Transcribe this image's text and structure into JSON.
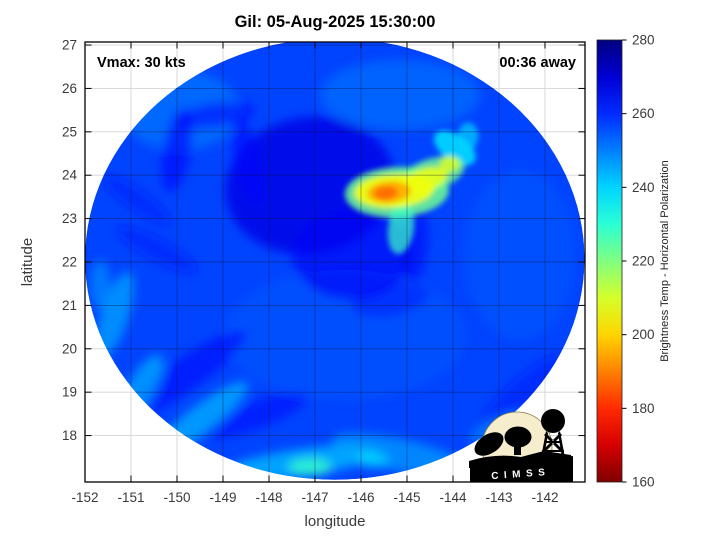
{
  "logo": {
    "text": "CIMSS"
  },
  "chart_data": {
    "type": "heatmap",
    "title": "Gil: 05-Aug-2025 15:30:00",
    "annotations": {
      "vmax": "Vmax: 30 kts",
      "time_away": "00:36 away"
    },
    "xlabel": "longitude",
    "ylabel": "latitude",
    "xlim": [
      -152.0,
      -141.13
    ],
    "ylim": [
      16.93,
      27.07
    ],
    "x_ticks": [
      -152,
      -151,
      -150,
      -149,
      -148,
      -147,
      -146,
      -145,
      -144,
      -143,
      -142
    ],
    "y_ticks": [
      18,
      19,
      20,
      21,
      22,
      23,
      24,
      25,
      26,
      27
    ],
    "grid": true,
    "colorbar": {
      "label": "Brightness Temp - Horizontal Polarization",
      "min": 160,
      "max": 280,
      "ticks": [
        280,
        260,
        240,
        220,
        200,
        180,
        160
      ],
      "colormap": "jet-reversed-high-is-blue"
    },
    "swath": {
      "description": "circular microwave scan footprint",
      "center_lon": -146.57,
      "center_lat": 22.07,
      "rx_deg": 5.43,
      "ry_deg": 5.09,
      "base_tb": 257
    },
    "features": [
      {
        "name": "bright-patch-nw",
        "lon": -149.93,
        "lat": 25.5,
        "rx": 1.3,
        "ry": 0.92,
        "rot": 0,
        "tb": 251,
        "op": 0.7,
        "layer": "soft"
      },
      {
        "name": "bright-patch-n",
        "lon": -145.15,
        "lat": 25.85,
        "rx": 1.74,
        "ry": 0.81,
        "rot": 0,
        "tb": 251,
        "op": 0.6,
        "layer": "soft"
      },
      {
        "name": "bright-patch-e",
        "lon": -142.54,
        "lat": 22.16,
        "rx": 1.2,
        "ry": 1.96,
        "rot": 0,
        "tb": 254,
        "op": 0.45,
        "layer": "soft"
      },
      {
        "name": "bright-patch-s",
        "lon": -146.35,
        "lat": 20.32,
        "rx": 2.61,
        "ry": 1.5,
        "rot": 0,
        "tb": 254,
        "op": 0.4,
        "layer": "soft"
      },
      {
        "name": "dark-core-mass",
        "lon": -147.11,
        "lat": 23.77,
        "rx": 1.85,
        "ry": 1.57,
        "rot": -10,
        "tb": 268,
        "op": 0.8,
        "layer": "soft"
      },
      {
        "name": "dark-core-mass-2",
        "lon": -146.2,
        "lat": 22.16,
        "rx": 1.3,
        "ry": 1.04,
        "rot": 0,
        "tb": 266,
        "op": 0.6,
        "layer": "soft"
      },
      {
        "name": "dark-hook-left",
        "lon": -150.0,
        "lat": 24.58,
        "rx": 0.3,
        "ry": 0.97,
        "rot": 10,
        "tb": 265,
        "op": 0.6,
        "layer": "soft"
      },
      {
        "name": "dark-hook-top",
        "lon": -149.17,
        "lat": 25.39,
        "rx": 0.87,
        "ry": 0.28,
        "rot": -8,
        "tb": 265,
        "op": 0.55,
        "layer": "soft"
      },
      {
        "name": "dark-hook-right",
        "lon": -148.48,
        "lat": 24.35,
        "rx": 0.26,
        "ry": 1.04,
        "rot": -12,
        "tb": 265,
        "op": 0.55,
        "layer": "soft"
      },
      {
        "name": "dark-streak-w1",
        "lon": -150.87,
        "lat": 23.43,
        "rx": 0.87,
        "ry": 0.23,
        "rot": 35,
        "tb": 263,
        "op": 0.5,
        "layer": "soft"
      },
      {
        "name": "dark-streak-w2",
        "lon": -150.43,
        "lat": 22.28,
        "rx": 0.98,
        "ry": 0.25,
        "rot": 28,
        "tb": 263,
        "op": 0.5,
        "layer": "soft"
      },
      {
        "name": "dark-band-sw1",
        "lon": -149.83,
        "lat": 19.4,
        "rx": 1.63,
        "ry": 0.37,
        "rot": -35,
        "tb": 265,
        "op": 0.55,
        "layer": "soft"
      },
      {
        "name": "dark-band-sw2",
        "lon": -148.3,
        "lat": 18.47,
        "rx": 1.2,
        "ry": 0.32,
        "rot": -20,
        "tb": 264,
        "op": 0.5,
        "layer": "soft"
      },
      {
        "name": "dark-streak-below-hotspot",
        "lon": -144.83,
        "lat": 22.39,
        "rx": 0.28,
        "ry": 0.88,
        "rot": 5,
        "tb": 266,
        "op": 0.55,
        "layer": "soft"
      },
      {
        "name": "dark-arc-se",
        "lon": -142.43,
        "lat": 19.05,
        "rx": 1.2,
        "ry": 0.32,
        "rot": -40,
        "tb": 263,
        "op": 0.5,
        "layer": "soft"
      },
      {
        "name": "dark-patch-s",
        "lon": -145.37,
        "lat": 21.12,
        "rx": 0.87,
        "ry": 0.37,
        "rot": -10,
        "tb": 263,
        "op": 0.45,
        "layer": "soft"
      },
      {
        "name": "cyan-fringe-sw",
        "lon": -149.5,
        "lat": 18.36,
        "rx": 1.3,
        "ry": 0.32,
        "rot": -38,
        "tb": 243,
        "op": 0.7,
        "layer": "soft"
      },
      {
        "name": "cyan-fringe-s",
        "lon": -147.33,
        "lat": 17.37,
        "rx": 1.74,
        "ry": 0.32,
        "rot": -8,
        "tb": 242,
        "op": 0.75,
        "layer": "soft"
      },
      {
        "name": "cyan-fringe-se",
        "lon": -145.15,
        "lat": 17.55,
        "rx": 1.52,
        "ry": 0.37,
        "rot": 12,
        "tb": 245,
        "op": 0.65,
        "layer": "soft"
      },
      {
        "name": "cyan-edge-w1",
        "lon": -151.35,
        "lat": 20.78,
        "rx": 0.3,
        "ry": 1.04,
        "rot": 18,
        "tb": 244,
        "op": 0.65,
        "layer": "soft"
      },
      {
        "name": "cyan-edge-w2",
        "lon": -150.8,
        "lat": 19.05,
        "rx": 0.3,
        "ry": 0.92,
        "rot": 30,
        "tb": 243,
        "op": 0.65,
        "layer": "soft"
      },
      {
        "name": "green-spot-s",
        "lon": -147.11,
        "lat": 17.28,
        "rx": 0.48,
        "ry": 0.21,
        "rot": 0,
        "tb": 229,
        "op": 0.8,
        "layer": "soft"
      },
      {
        "name": "cyan-spot-s",
        "lon": -145.74,
        "lat": 17.44,
        "rx": 0.35,
        "ry": 0.18,
        "rot": 0,
        "tb": 237,
        "op": 0.6,
        "layer": "soft"
      },
      {
        "name": "cyan-streak-se",
        "lon": -143.04,
        "lat": 18.18,
        "rx": 0.65,
        "ry": 0.23,
        "rot": -25,
        "tb": 247,
        "op": 0.55,
        "layer": "soft"
      },
      {
        "name": "cyan-edge-w3",
        "lon": -151.67,
        "lat": 21.47,
        "rx": 0.22,
        "ry": 0.58,
        "rot": 0,
        "tb": 246,
        "op": 0.55,
        "layer": "soft"
      },
      {
        "name": "hotspot-cyan-fringe",
        "lon": -143.96,
        "lat": 24.63,
        "rx": 0.52,
        "ry": 0.3,
        "rot": 35,
        "tb": 238,
        "op": 0.85,
        "layer": "hot"
      },
      {
        "name": "hotspot-cyan-curl",
        "lon": -143.67,
        "lat": 24.9,
        "rx": 0.22,
        "ry": 0.32,
        "rot": 0,
        "tb": 240,
        "op": 0.7,
        "layer": "hot"
      },
      {
        "name": "hotspot-green-ring",
        "lon": -145.22,
        "lat": 23.61,
        "rx": 1.13,
        "ry": 0.58,
        "rot": -3,
        "tb": 222,
        "op": 0.85,
        "layer": "hot"
      },
      {
        "name": "hotspot-green-arm",
        "lon": -144.46,
        "lat": 24.01,
        "rx": 0.74,
        "ry": 0.37,
        "rot": -18,
        "tb": 222,
        "op": 0.8,
        "layer": "hot"
      },
      {
        "name": "hotspot-green-tail",
        "lon": -145.13,
        "lat": 22.78,
        "rx": 0.28,
        "ry": 0.6,
        "rot": 8,
        "tb": 228,
        "op": 0.7,
        "layer": "hot"
      },
      {
        "name": "hotspot-yellow-main",
        "lon": -145.28,
        "lat": 23.64,
        "rx": 0.87,
        "ry": 0.39,
        "rot": -4,
        "tb": 206,
        "op": 0.9,
        "layer": "hot"
      },
      {
        "name": "hotspot-yellow-arm",
        "lon": -144.57,
        "lat": 23.92,
        "rx": 0.48,
        "ry": 0.25,
        "rot": -16,
        "tb": 207,
        "op": 0.85,
        "layer": "hot"
      },
      {
        "name": "hotspot-yellow-knob",
        "lon": -144.07,
        "lat": 24.26,
        "rx": 0.22,
        "ry": 0.18,
        "rot": 0,
        "tb": 209,
        "op": 0.8,
        "layer": "hot"
      },
      {
        "name": "hotspot-orange-ring",
        "lon": -145.39,
        "lat": 23.61,
        "rx": 0.48,
        "ry": 0.25,
        "rot": -5,
        "tb": 195,
        "op": 0.9,
        "layer": "hot"
      },
      {
        "name": "hotspot-core",
        "lon": -145.46,
        "lat": 23.59,
        "rx": 0.26,
        "ry": 0.16,
        "rot": -5,
        "tb": 187,
        "op": 0.9,
        "layer": "hot"
      }
    ]
  }
}
